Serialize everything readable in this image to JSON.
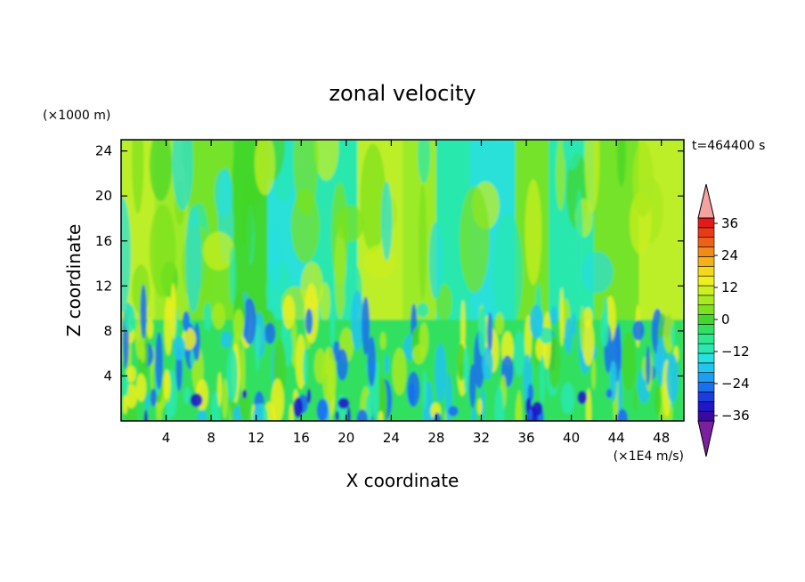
{
  "chart_data": {
    "type": "heatmap",
    "title": "zonal velocity",
    "xlabel": "X coordinate",
    "ylabel": "Z coordinate",
    "x_unit_label": "(×1E4 m/s)",
    "y_unit_label": "(×1000 m)",
    "time_label": "t=464400 s",
    "xlim": [
      0,
      50
    ],
    "ylim": [
      0,
      25
    ],
    "x_ticks": [
      4,
      8,
      12,
      16,
      20,
      24,
      28,
      32,
      36,
      40,
      44,
      48
    ],
    "y_ticks": [
      4,
      8,
      12,
      16,
      20,
      24
    ],
    "colorbar": {
      "min": -42,
      "max": 42,
      "step": 4,
      "ticks": [
        36,
        24,
        12,
        0,
        -12,
        -24,
        -36
      ],
      "colors": [
        "#7a1fa0",
        "#3a0aa0",
        "#1f17c8",
        "#1a3de0",
        "#1a6ef0",
        "#1c9ef5",
        "#22c4f0",
        "#27e0e0",
        "#2ae8b0",
        "#2ee890",
        "#30e060",
        "#44d628",
        "#7be21c",
        "#a8ea20",
        "#ccf020",
        "#eef01e",
        "#f5d81e",
        "#f5b01a",
        "#f28a18",
        "#ee6016",
        "#e83a14",
        "#e21a18",
        "#f4a3a0"
      ],
      "direction": "bottom-to-top"
    },
    "field_description_samples": {
      "upper_layer_value_range": [
        -4,
        8
      ],
      "lower_layer_value_range": [
        -20,
        12
      ],
      "dominant_level": 0
    }
  }
}
